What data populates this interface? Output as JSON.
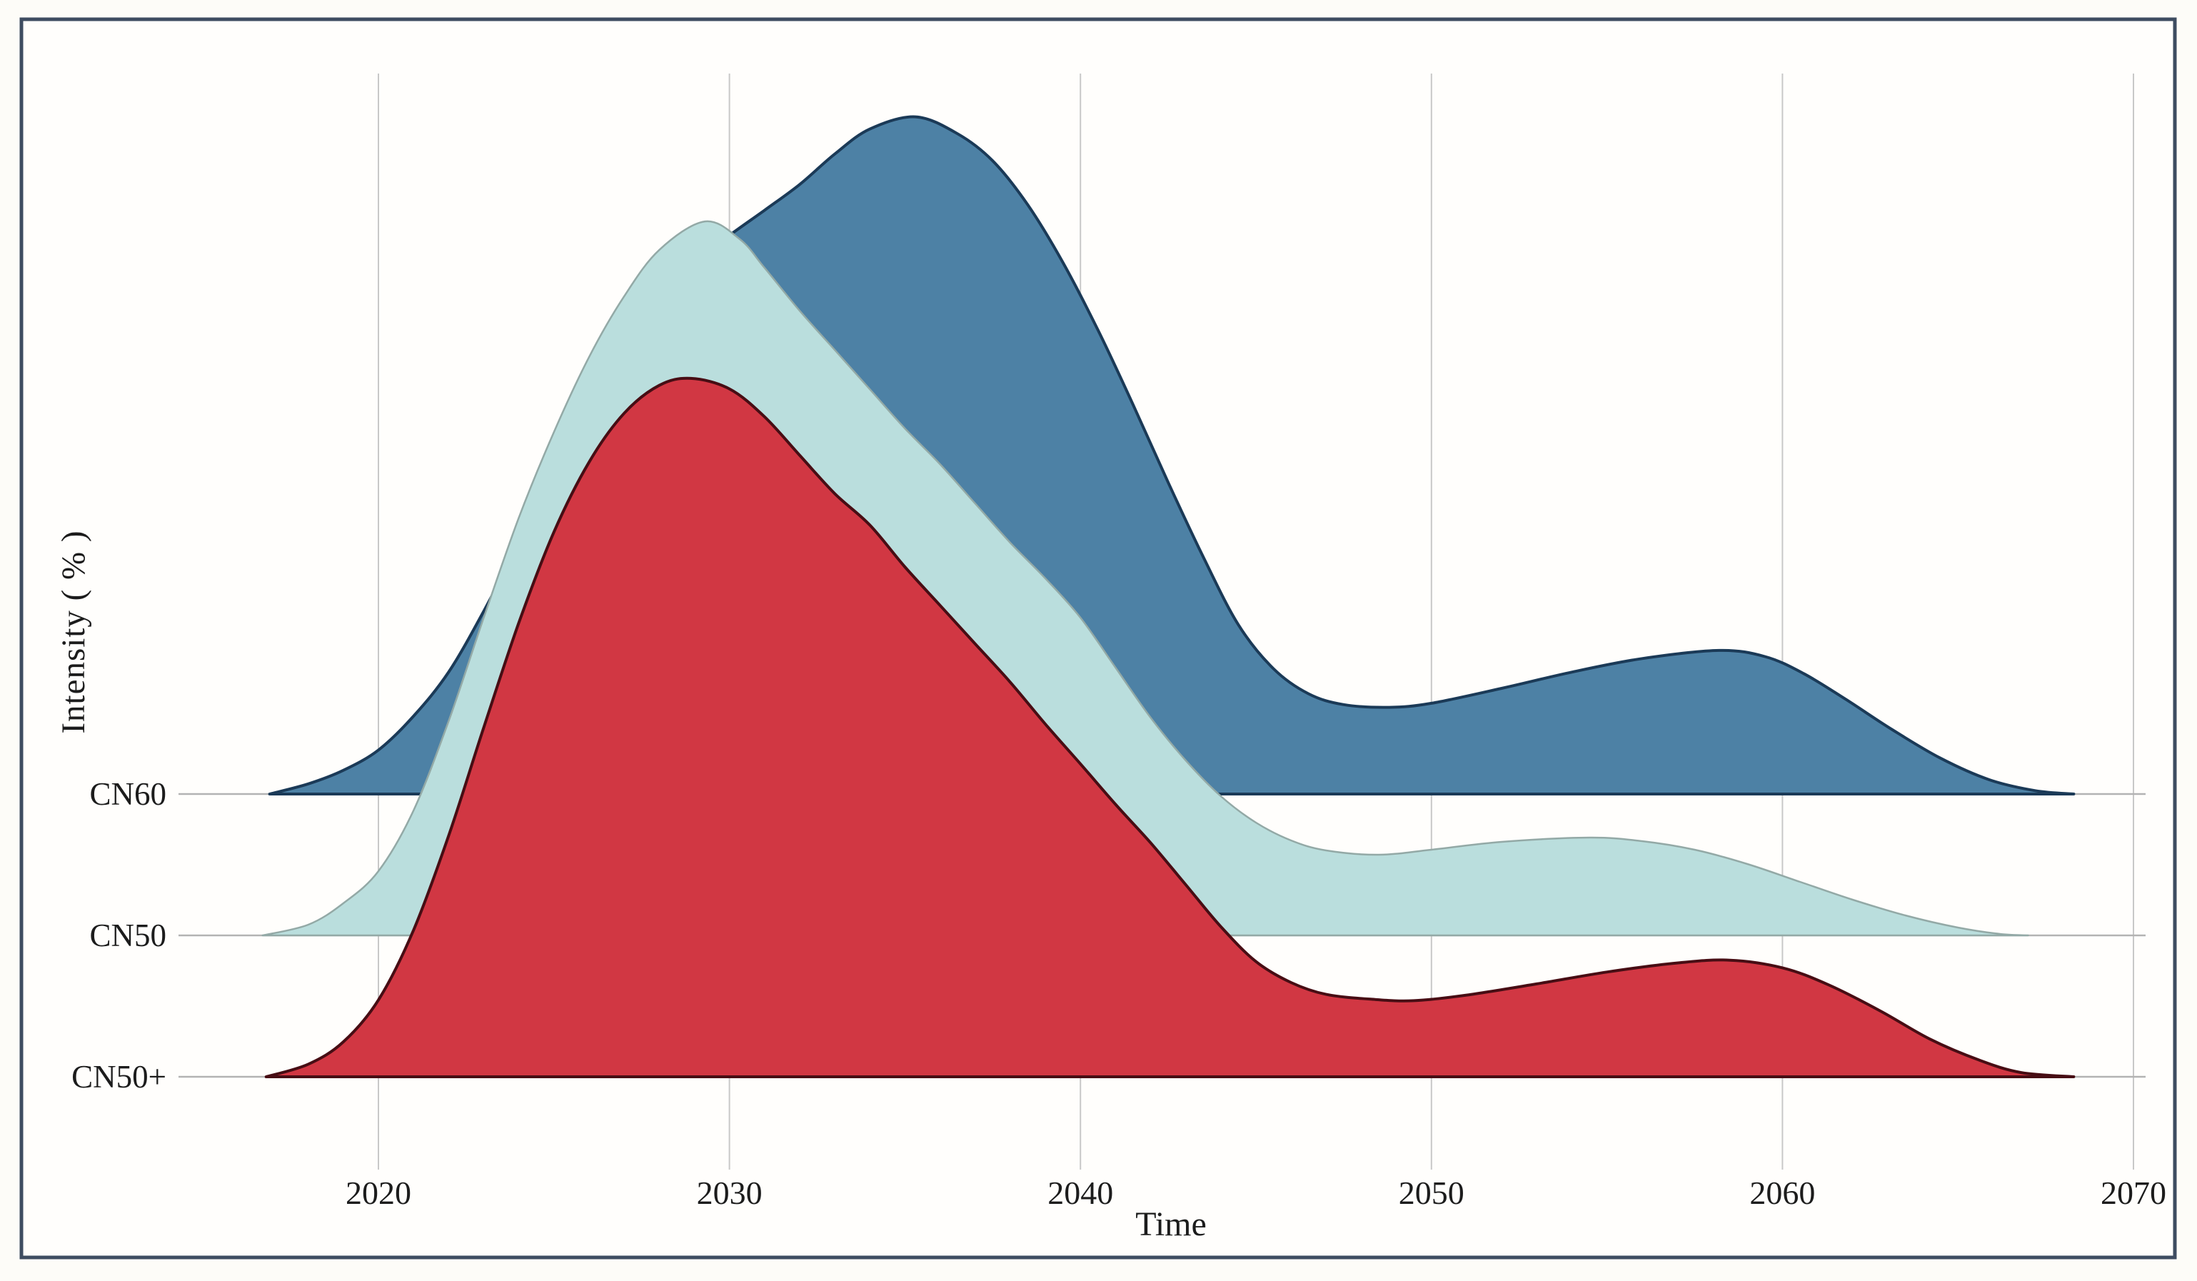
{
  "figure": {
    "border_color": "#3e4c61",
    "plot_background": "#fffefc",
    "gridline_color": "#c8c8c8",
    "row_axis_color": "#b3b3b3",
    "text_color": "#1c1c1c"
  },
  "chart_data": {
    "type": "area",
    "variant": "ridgeline",
    "title": "",
    "xlabel": "Time",
    "ylabel": "Intensity ( % )",
    "x_ticks": [
      "2020",
      "2030",
      "2040",
      "2050",
      "2060",
      "2070"
    ],
    "x_tick_values": [
      2020,
      2030,
      2040,
      2050,
      2060,
      2070
    ],
    "x_range": [
      2014.9,
      2070.6
    ],
    "grid": "vertical-only",
    "legend_position": "none",
    "categories": [
      "CN60",
      "CN50",
      "CN50+"
    ],
    "series": [
      {
        "name": "CN60",
        "fill": "#4d81a5",
        "stroke": "#1b3a57",
        "stroke_width": 4,
        "relative_amplitude": 4.79,
        "peak_year": 2035.3,
        "valley_year": 2048.8,
        "bump_year": 2058.2,
        "points": [
          [
            2016.9,
            0
          ],
          [
            2018,
            0.015
          ],
          [
            2019,
            0.035
          ],
          [
            2020,
            0.065
          ],
          [
            2021,
            0.115
          ],
          [
            2022,
            0.18
          ],
          [
            2023,
            0.27
          ],
          [
            2024,
            0.37
          ],
          [
            2025,
            0.47
          ],
          [
            2026,
            0.565
          ],
          [
            2027,
            0.655
          ],
          [
            2028,
            0.73
          ],
          [
            2029,
            0.785
          ],
          [
            2030,
            0.825
          ],
          [
            2031,
            0.862
          ],
          [
            2032,
            0.9
          ],
          [
            2033,
            0.945
          ],
          [
            2034,
            0.982
          ],
          [
            2035.3,
            1.0
          ],
          [
            2036.5,
            0.975
          ],
          [
            2037.5,
            0.935
          ],
          [
            2038.5,
            0.87
          ],
          [
            2039.5,
            0.785
          ],
          [
            2040.5,
            0.685
          ],
          [
            2041.5,
            0.575
          ],
          [
            2042.5,
            0.46
          ],
          [
            2043.5,
            0.35
          ],
          [
            2044.5,
            0.25
          ],
          [
            2045.5,
            0.185
          ],
          [
            2046.5,
            0.148
          ],
          [
            2047.5,
            0.132
          ],
          [
            2048.8,
            0.128
          ],
          [
            2050,
            0.134
          ],
          [
            2052,
            0.156
          ],
          [
            2054,
            0.18
          ],
          [
            2056,
            0.2
          ],
          [
            2058.2,
            0.212
          ],
          [
            2059.5,
            0.203
          ],
          [
            2060.6,
            0.178
          ],
          [
            2061.8,
            0.14
          ],
          [
            2063.1,
            0.096
          ],
          [
            2064.5,
            0.053
          ],
          [
            2065.9,
            0.021
          ],
          [
            2067.2,
            0.005
          ],
          [
            2068.3,
            0
          ]
        ]
      },
      {
        "name": "CN50",
        "fill": "#badedd",
        "stroke": "#93a9a6",
        "stroke_width": 2.5,
        "relative_amplitude": 5.05,
        "peak_year": 2029.3,
        "valley_year": 2048.5,
        "bump_year": 2054.5,
        "points": [
          [
            2016.7,
            0
          ],
          [
            2018,
            0.015
          ],
          [
            2019,
            0.045
          ],
          [
            2020,
            0.09
          ],
          [
            2021,
            0.175
          ],
          [
            2022,
            0.3
          ],
          [
            2023,
            0.445
          ],
          [
            2024,
            0.585
          ],
          [
            2025,
            0.705
          ],
          [
            2026,
            0.81
          ],
          [
            2027,
            0.895
          ],
          [
            2028,
            0.96
          ],
          [
            2029.3,
            1.0
          ],
          [
            2030.3,
            0.975
          ],
          [
            2031,
            0.935
          ],
          [
            2032,
            0.875
          ],
          [
            2033,
            0.82
          ],
          [
            2034,
            0.765
          ],
          [
            2035,
            0.71
          ],
          [
            2036,
            0.66
          ],
          [
            2037,
            0.605
          ],
          [
            2038,
            0.55
          ],
          [
            2039,
            0.5
          ],
          [
            2040,
            0.445
          ],
          [
            2041,
            0.375
          ],
          [
            2042,
            0.305
          ],
          [
            2043,
            0.245
          ],
          [
            2044,
            0.195
          ],
          [
            2045,
            0.158
          ],
          [
            2046,
            0.133
          ],
          [
            2047,
            0.119
          ],
          [
            2048.5,
            0.113
          ],
          [
            2050,
            0.12
          ],
          [
            2052,
            0.131
          ],
          [
            2054.5,
            0.137
          ],
          [
            2056,
            0.132
          ],
          [
            2057.5,
            0.12
          ],
          [
            2059,
            0.1
          ],
          [
            2060.5,
            0.075
          ],
          [
            2062,
            0.05
          ],
          [
            2063.5,
            0.028
          ],
          [
            2065,
            0.011
          ],
          [
            2066.2,
            0.002
          ],
          [
            2067,
            0
          ]
        ]
      },
      {
        "name": "CN50+",
        "fill": "#d13743",
        "stroke": "#470d14",
        "stroke_width": 4,
        "relative_amplitude": 4.94,
        "peak_year": 2028.9,
        "valley_year": 2049.5,
        "bump_year": 2058.5,
        "points": [
          [
            2016.8,
            0
          ],
          [
            2018,
            0.018
          ],
          [
            2019,
            0.05
          ],
          [
            2020,
            0.11
          ],
          [
            2021,
            0.21
          ],
          [
            2022,
            0.345
          ],
          [
            2023,
            0.5
          ],
          [
            2024,
            0.65
          ],
          [
            2025,
            0.78
          ],
          [
            2026,
            0.88
          ],
          [
            2027,
            0.95
          ],
          [
            2028,
            0.99
          ],
          [
            2028.9,
            1.0
          ],
          [
            2030,
            0.985
          ],
          [
            2031,
            0.945
          ],
          [
            2032,
            0.89
          ],
          [
            2033,
            0.835
          ],
          [
            2034,
            0.79
          ],
          [
            2035,
            0.73
          ],
          [
            2036,
            0.675
          ],
          [
            2037,
            0.62
          ],
          [
            2038,
            0.565
          ],
          [
            2039,
            0.505
          ],
          [
            2040,
            0.448
          ],
          [
            2041,
            0.39
          ],
          [
            2042,
            0.335
          ],
          [
            2043,
            0.275
          ],
          [
            2044,
            0.215
          ],
          [
            2045,
            0.165
          ],
          [
            2046,
            0.135
          ],
          [
            2047,
            0.118
          ],
          [
            2048.3,
            0.111
          ],
          [
            2049.5,
            0.109
          ],
          [
            2051,
            0.117
          ],
          [
            2053,
            0.133
          ],
          [
            2055,
            0.15
          ],
          [
            2057,
            0.163
          ],
          [
            2058.5,
            0.167
          ],
          [
            2060,
            0.156
          ],
          [
            2061.3,
            0.132
          ],
          [
            2062.8,
            0.094
          ],
          [
            2064.2,
            0.054
          ],
          [
            2065.6,
            0.024
          ],
          [
            2066.8,
            0.006
          ],
          [
            2068.3,
            0
          ]
        ]
      }
    ]
  }
}
